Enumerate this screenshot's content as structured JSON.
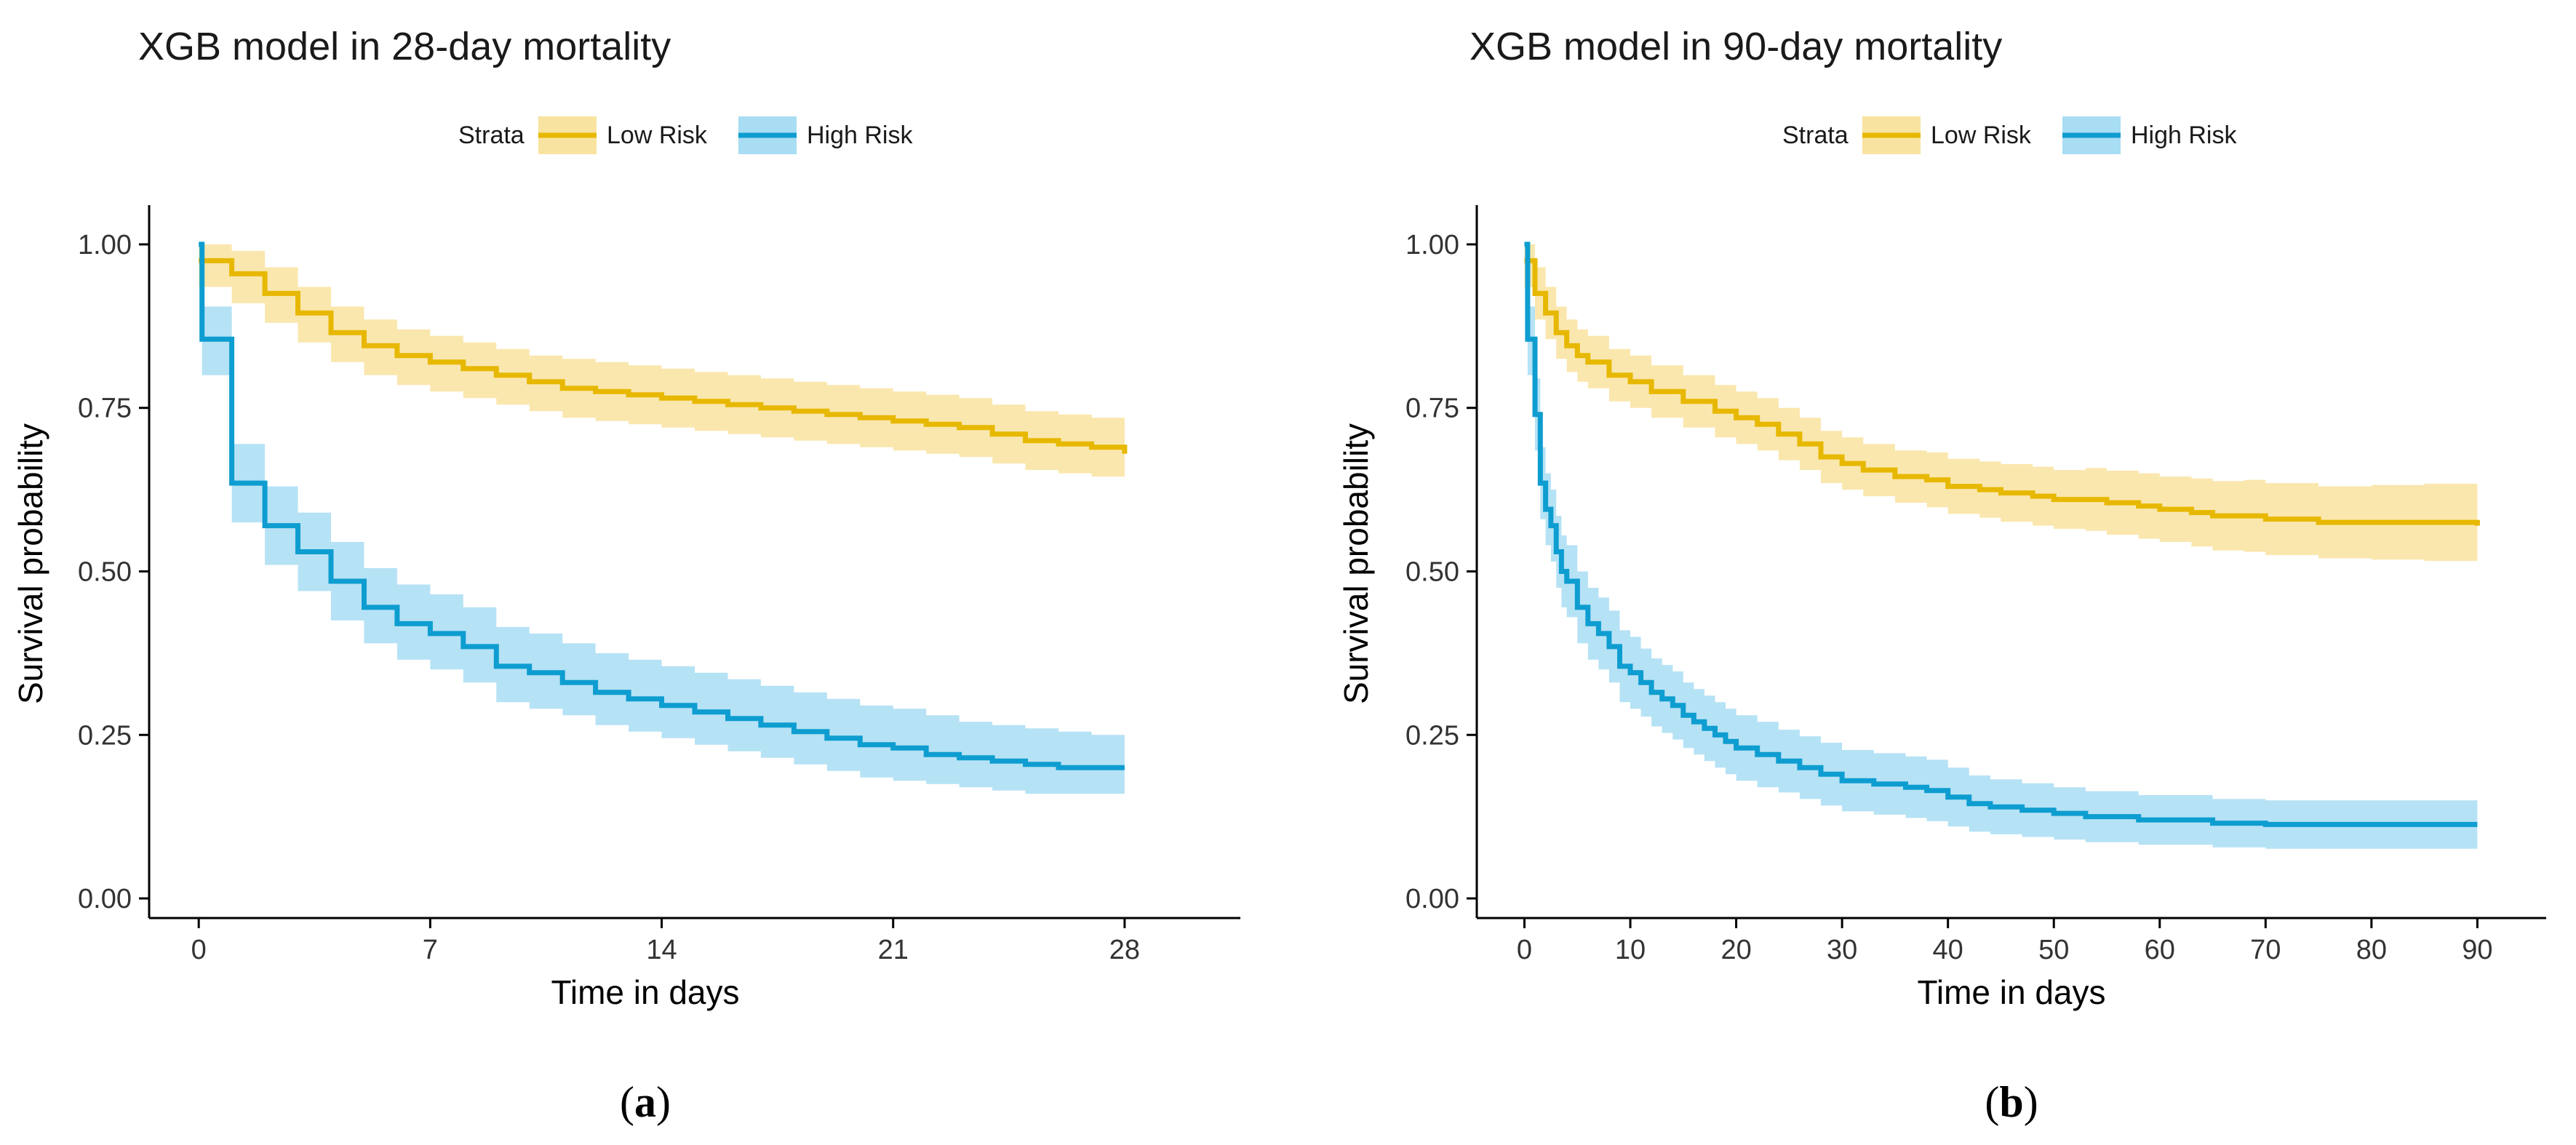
{
  "colors": {
    "low_line": "#E7B800",
    "low_band": "#F9E3A0",
    "high_line": "#0E9DD0",
    "high_band": "#A9DDF3",
    "axis": "#000000"
  },
  "chart_data": [
    {
      "type": "line",
      "panel": "(a)",
      "panel_open": "(",
      "panel_letter": "a",
      "panel_close": ")",
      "title": "XGB model in 28-day mortality",
      "xlabel": "Time in days",
      "ylabel": "Survival probability",
      "legend_title": "Strata",
      "legend_position": "top",
      "xlim": [
        -1.5,
        31.5
      ],
      "ylim": [
        -0.03,
        1.06
      ],
      "xticks": [
        0,
        7,
        14,
        21,
        28
      ],
      "xtick_labels": [
        "0",
        "7",
        "14",
        "21",
        "28"
      ],
      "yticks": [
        0,
        0.25,
        0.5,
        0.75,
        1.0
      ],
      "ytick_labels": [
        "0.00",
        "0.25",
        "0.50",
        "0.75",
        "1.00"
      ],
      "grid": false,
      "series": [
        {
          "name": "Low Risk",
          "key": "low",
          "x": [
            0,
            1,
            2,
            3,
            4,
            5,
            6,
            7,
            8,
            9,
            10,
            11,
            12,
            13,
            14,
            15,
            16,
            17,
            18,
            19,
            20,
            21,
            22,
            23,
            24,
            25,
            26,
            27,
            28
          ],
          "y": [
            0.975,
            0.955,
            0.925,
            0.895,
            0.865,
            0.845,
            0.83,
            0.82,
            0.81,
            0.8,
            0.79,
            0.78,
            0.775,
            0.77,
            0.765,
            0.76,
            0.755,
            0.75,
            0.745,
            0.74,
            0.735,
            0.73,
            0.725,
            0.72,
            0.71,
            0.7,
            0.695,
            0.69,
            0.68
          ],
          "lower": [
            0.935,
            0.91,
            0.88,
            0.85,
            0.82,
            0.8,
            0.785,
            0.775,
            0.765,
            0.755,
            0.745,
            0.735,
            0.73,
            0.725,
            0.72,
            0.715,
            0.71,
            0.705,
            0.7,
            0.695,
            0.69,
            0.685,
            0.68,
            0.675,
            0.665,
            0.655,
            0.65,
            0.645,
            0.635
          ],
          "upper": [
            1.0,
            0.99,
            0.965,
            0.935,
            0.905,
            0.885,
            0.87,
            0.86,
            0.85,
            0.84,
            0.83,
            0.825,
            0.82,
            0.815,
            0.81,
            0.805,
            0.8,
            0.795,
            0.79,
            0.785,
            0.78,
            0.775,
            0.77,
            0.765,
            0.755,
            0.745,
            0.74,
            0.735,
            0.725
          ]
        },
        {
          "name": "High Risk",
          "key": "high",
          "x": [
            0,
            0.1,
            1,
            2,
            3,
            4,
            5,
            6,
            7,
            8,
            9,
            10,
            11,
            12,
            13,
            14,
            15,
            16,
            17,
            18,
            19,
            20,
            21,
            22,
            23,
            24,
            25,
            26,
            27,
            28
          ],
          "y": [
            1.0,
            0.855,
            0.635,
            0.57,
            0.53,
            0.485,
            0.445,
            0.42,
            0.405,
            0.385,
            0.355,
            0.345,
            0.33,
            0.315,
            0.305,
            0.295,
            0.285,
            0.275,
            0.265,
            0.255,
            0.245,
            0.235,
            0.23,
            0.22,
            0.215,
            0.21,
            0.205,
            0.2,
            0.2,
            0.2
          ],
          "lower": [
            1.0,
            0.8,
            0.575,
            0.51,
            0.47,
            0.425,
            0.39,
            0.365,
            0.35,
            0.33,
            0.3,
            0.29,
            0.28,
            0.265,
            0.255,
            0.245,
            0.235,
            0.225,
            0.215,
            0.205,
            0.195,
            0.185,
            0.18,
            0.175,
            0.17,
            0.165,
            0.16,
            0.16,
            0.16,
            0.16
          ],
          "upper": [
            1.0,
            0.905,
            0.695,
            0.63,
            0.59,
            0.545,
            0.505,
            0.48,
            0.465,
            0.445,
            0.415,
            0.405,
            0.39,
            0.375,
            0.365,
            0.355,
            0.345,
            0.335,
            0.325,
            0.315,
            0.305,
            0.295,
            0.29,
            0.28,
            0.27,
            0.265,
            0.26,
            0.255,
            0.25,
            0.25
          ]
        }
      ]
    },
    {
      "type": "line",
      "panel": "(b)",
      "panel_open": "(",
      "panel_letter": "b",
      "panel_close": ")",
      "title": "XGB model in 90-day mortality",
      "xlabel": "Time in days",
      "ylabel": "Survival probability",
      "legend_title": "Strata",
      "legend_position": "top",
      "xlim": [
        -4.5,
        96.5
      ],
      "ylim": [
        -0.03,
        1.06
      ],
      "xticks": [
        0,
        10,
        20,
        30,
        40,
        50,
        60,
        70,
        80,
        90
      ],
      "xtick_labels": [
        "0",
        "10",
        "20",
        "30",
        "40",
        "50",
        "60",
        "70",
        "80",
        "90"
      ],
      "yticks": [
        0,
        0.25,
        0.5,
        0.75,
        1.0
      ],
      "ytick_labels": [
        "0.00",
        "0.25",
        "0.50",
        "0.75",
        "1.00"
      ],
      "grid": false,
      "series": [
        {
          "name": "Low Risk",
          "key": "low",
          "x": [
            0,
            1,
            2,
            3,
            4,
            5,
            6,
            8,
            10,
            12,
            15,
            18,
            20,
            22,
            24,
            26,
            28,
            30,
            32,
            35,
            38,
            40,
            43,
            45,
            48,
            50,
            53,
            55,
            58,
            60,
            63,
            65,
            68,
            70,
            75,
            80,
            85,
            90
          ],
          "y": [
            0.975,
            0.925,
            0.895,
            0.865,
            0.845,
            0.83,
            0.82,
            0.8,
            0.79,
            0.775,
            0.76,
            0.745,
            0.735,
            0.725,
            0.71,
            0.695,
            0.675,
            0.665,
            0.655,
            0.645,
            0.64,
            0.63,
            0.625,
            0.62,
            0.615,
            0.61,
            0.61,
            0.605,
            0.6,
            0.595,
            0.59,
            0.585,
            0.585,
            0.58,
            0.575,
            0.575,
            0.575,
            0.57
          ],
          "lower": [
            0.935,
            0.885,
            0.855,
            0.825,
            0.805,
            0.79,
            0.78,
            0.76,
            0.75,
            0.735,
            0.72,
            0.705,
            0.695,
            0.685,
            0.67,
            0.655,
            0.635,
            0.625,
            0.615,
            0.605,
            0.598,
            0.588,
            0.582,
            0.576,
            0.57,
            0.565,
            0.562,
            0.556,
            0.55,
            0.545,
            0.538,
            0.532,
            0.53,
            0.525,
            0.52,
            0.518,
            0.516,
            0.512
          ],
          "upper": [
            1.0,
            0.965,
            0.935,
            0.905,
            0.885,
            0.87,
            0.86,
            0.84,
            0.83,
            0.815,
            0.8,
            0.785,
            0.775,
            0.765,
            0.75,
            0.735,
            0.715,
            0.705,
            0.695,
            0.685,
            0.682,
            0.672,
            0.668,
            0.664,
            0.66,
            0.655,
            0.658,
            0.654,
            0.65,
            0.645,
            0.642,
            0.638,
            0.64,
            0.635,
            0.63,
            0.632,
            0.634,
            0.632
          ]
        },
        {
          "name": "High Risk",
          "key": "high",
          "x": [
            0,
            0.3,
            1,
            1.5,
            2,
            2.5,
            3,
            3.5,
            4,
            5,
            6,
            7,
            8,
            9,
            10,
            11,
            12,
            13,
            14,
            15,
            16,
            17,
            18,
            19,
            20,
            22,
            24,
            26,
            28,
            30,
            33,
            36,
            38,
            40,
            42,
            44,
            47,
            50,
            53,
            55,
            58,
            60,
            63,
            65,
            67,
            70,
            75,
            80,
            85,
            90
          ],
          "y": [
            1.0,
            0.855,
            0.74,
            0.635,
            0.595,
            0.57,
            0.53,
            0.5,
            0.485,
            0.445,
            0.42,
            0.405,
            0.385,
            0.355,
            0.345,
            0.33,
            0.315,
            0.305,
            0.295,
            0.28,
            0.27,
            0.26,
            0.25,
            0.24,
            0.23,
            0.22,
            0.21,
            0.2,
            0.19,
            0.18,
            0.175,
            0.17,
            0.165,
            0.155,
            0.145,
            0.14,
            0.135,
            0.13,
            0.125,
            0.125,
            0.12,
            0.12,
            0.12,
            0.115,
            0.115,
            0.113,
            0.113,
            0.113,
            0.113,
            0.113
          ],
          "lower": [
            1.0,
            0.8,
            0.685,
            0.58,
            0.54,
            0.515,
            0.475,
            0.445,
            0.43,
            0.39,
            0.365,
            0.35,
            0.33,
            0.3,
            0.29,
            0.278,
            0.263,
            0.253,
            0.243,
            0.23,
            0.22,
            0.21,
            0.2,
            0.19,
            0.18,
            0.17,
            0.162,
            0.152,
            0.142,
            0.133,
            0.128,
            0.123,
            0.118,
            0.11,
            0.102,
            0.098,
            0.094,
            0.09,
            0.086,
            0.086,
            0.082,
            0.082,
            0.082,
            0.078,
            0.078,
            0.076,
            0.076,
            0.076,
            0.076,
            0.076
          ],
          "upper": [
            1.0,
            0.905,
            0.795,
            0.69,
            0.65,
            0.625,
            0.585,
            0.555,
            0.54,
            0.5,
            0.475,
            0.46,
            0.44,
            0.41,
            0.4,
            0.382,
            0.367,
            0.357,
            0.347,
            0.33,
            0.32,
            0.31,
            0.3,
            0.29,
            0.28,
            0.27,
            0.258,
            0.248,
            0.238,
            0.227,
            0.222,
            0.217,
            0.212,
            0.2,
            0.188,
            0.182,
            0.176,
            0.17,
            0.164,
            0.164,
            0.158,
            0.158,
            0.158,
            0.152,
            0.152,
            0.15,
            0.15,
            0.15,
            0.15,
            0.15
          ]
        }
      ]
    }
  ]
}
